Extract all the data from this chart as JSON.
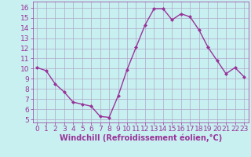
{
  "x": [
    0,
    1,
    2,
    3,
    4,
    5,
    6,
    7,
    8,
    9,
    10,
    11,
    12,
    13,
    14,
    15,
    16,
    17,
    18,
    19,
    20,
    21,
    22,
    23
  ],
  "y": [
    10.1,
    9.8,
    8.5,
    7.7,
    6.7,
    6.5,
    6.3,
    5.3,
    5.2,
    7.3,
    9.9,
    12.1,
    14.3,
    15.9,
    15.9,
    14.8,
    15.4,
    15.1,
    13.8,
    12.1,
    10.8,
    9.5,
    10.1,
    9.2
  ],
  "line_color": "#993399",
  "marker": "D",
  "marker_size": 2.0,
  "xlabel": "Windchill (Refroidissement éolien,°C)",
  "xlabel_fontsize": 7.0,
  "ylabel_ticks": [
    5,
    6,
    7,
    8,
    9,
    10,
    11,
    12,
    13,
    14,
    15,
    16
  ],
  "xtick_labels": [
    "0",
    "1",
    "2",
    "3",
    "4",
    "5",
    "6",
    "7",
    "8",
    "9",
    "10",
    "11",
    "12",
    "13",
    "14",
    "15",
    "16",
    "17",
    "18",
    "19",
    "20",
    "21",
    "22",
    "23"
  ],
  "ylim": [
    4.7,
    16.6
  ],
  "xlim": [
    -0.5,
    23.5
  ],
  "bg_color": "#c8f0f0",
  "grid_color": "#b0a8c8",
  "tick_fontsize": 6.5,
  "line_width": 1.0
}
